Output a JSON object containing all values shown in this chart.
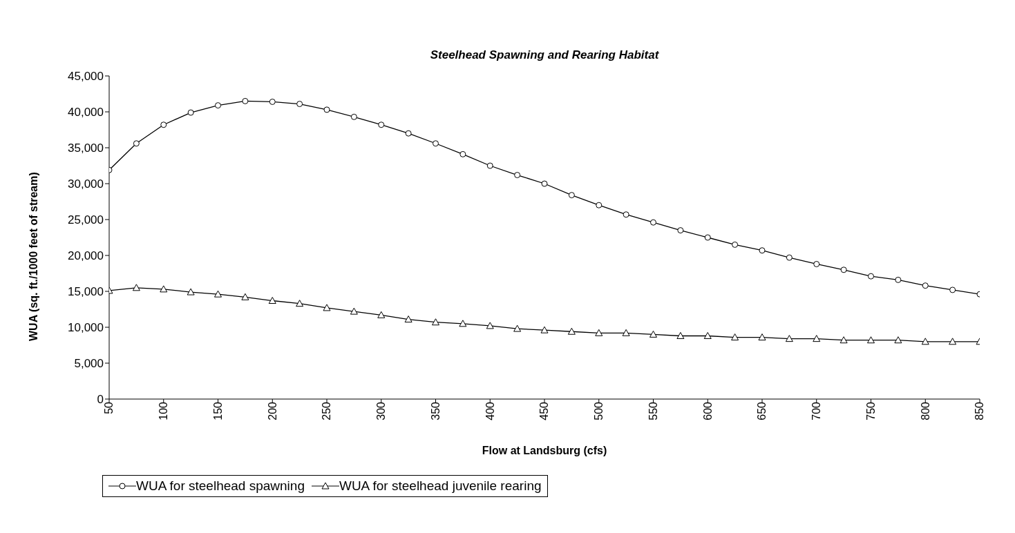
{
  "chart_data": {
    "type": "line",
    "title": "Steelhead Spawning and Rearing Habitat",
    "xlabel": "Flow at Landsburg (cfs)",
    "ylabel": "WUA (sq. ft./1000 feet of stream)",
    "x": [
      50,
      75,
      100,
      125,
      150,
      175,
      200,
      225,
      250,
      275,
      300,
      325,
      350,
      375,
      400,
      425,
      450,
      475,
      500,
      525,
      550,
      575,
      600,
      625,
      650,
      675,
      700,
      725,
      750,
      775,
      800,
      825,
      850
    ],
    "xlim": [
      50,
      850
    ],
    "xticks": [
      50,
      100,
      150,
      200,
      250,
      300,
      350,
      400,
      450,
      500,
      550,
      600,
      650,
      700,
      750,
      800,
      850
    ],
    "ylim": [
      0,
      45000
    ],
    "yticks": [
      0,
      {
        "value": 5000,
        "label": "5,000"
      },
      {
        "value": 10000,
        "label": "10,000"
      },
      {
        "value": 15000,
        "label": "15,000"
      },
      {
        "value": 20000,
        "label": "20,000"
      },
      {
        "value": 25000,
        "label": "25,000"
      },
      {
        "value": 30000,
        "label": "30,000"
      },
      {
        "value": 35000,
        "label": "35,000"
      },
      {
        "value": 40000,
        "label": "40,000"
      },
      {
        "value": 45000,
        "label": "45,000"
      }
    ],
    "series": [
      {
        "name": "WUA for steelhead spawning",
        "color": "#000000",
        "marker": "circle",
        "values": [
          31900,
          35600,
          38200,
          39900,
          40900,
          41500,
          41400,
          41100,
          40300,
          39300,
          38200,
          37000,
          35600,
          34100,
          32500,
          31200,
          30000,
          28400,
          27000,
          25700,
          24600,
          23500,
          22500,
          21500,
          20700,
          19700,
          18800,
          18000,
          17100,
          16600,
          15800,
          15200,
          14600
        ]
      },
      {
        "name": "WUA for steelhead juvenile rearing",
        "color": "#000000",
        "marker": "triangle",
        "values": [
          15100,
          15500,
          15300,
          14900,
          14600,
          14200,
          13700,
          13300,
          12700,
          12200,
          11700,
          11100,
          10700,
          10500,
          10200,
          9800,
          9600,
          9400,
          9200,
          9200,
          9000,
          8800,
          8800,
          8600,
          8600,
          8400,
          8400,
          8200,
          8200,
          8200,
          8000,
          8000,
          8000
        ]
      }
    ],
    "line_style": "solid",
    "grid": false,
    "legend": "bottom"
  }
}
